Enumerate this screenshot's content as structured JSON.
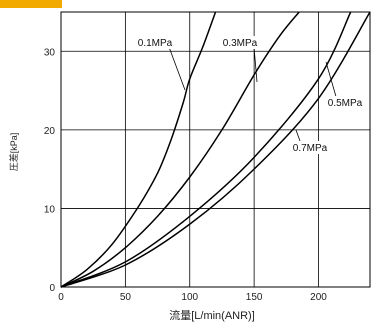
{
  "header_color": "#f2a900",
  "chart_data": {
    "type": "line",
    "xlabel": "流量[L/min(ANR)]",
    "ylabel": "圧差[kPa]",
    "xlim": [
      0,
      240
    ],
    "ylim": [
      0,
      35
    ],
    "xticks": [
      0,
      50,
      100,
      150,
      200
    ],
    "yticks": [
      0,
      10,
      20,
      30
    ],
    "grid": true,
    "series": [
      {
        "name": "0.1MPa",
        "x": [
          0,
          20,
          40,
          60,
          75,
          85,
          95,
          100,
          110,
          120
        ],
        "y": [
          0,
          2.2,
          5.5,
          10.2,
          14.5,
          18.5,
          23.5,
          26.5,
          30.5,
          35
        ]
      },
      {
        "name": "0.3MPa",
        "x": [
          0,
          25,
          50,
          75,
          100,
          125,
          150,
          170,
          185
        ],
        "y": [
          0,
          2.0,
          5.0,
          9.0,
          14.0,
          20.0,
          27.0,
          32.0,
          35
        ]
      },
      {
        "name": "0.5MPa",
        "x": [
          0,
          50,
          100,
          150,
          200,
          225
        ],
        "y": [
          0,
          3.2,
          9.0,
          16.5,
          26.5,
          35
        ]
      },
      {
        "name": "0.7MPa",
        "x": [
          0,
          50,
          100,
          150,
          200,
          240
        ],
        "y": [
          0,
          2.8,
          8.0,
          15.0,
          24.0,
          35
        ]
      }
    ],
    "callouts": [
      "0.1MPa",
      "0.3MPa",
      "0.5MPa",
      "0.7MPa"
    ]
  }
}
